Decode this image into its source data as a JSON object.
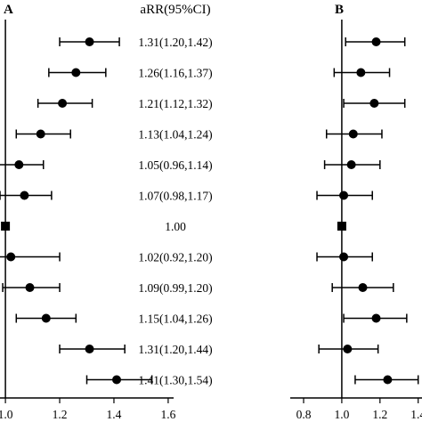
{
  "chart_data": [
    {
      "panel": "A",
      "type": "forest",
      "column_header": "aRR(95%CI)",
      "reference_line": 1.0,
      "xticks": [
        "1.0",
        "1.2",
        "1.4",
        "1.6"
      ],
      "xlim": [
        0.98,
        1.62
      ],
      "rows": [
        {
          "estimate": 1.31,
          "lower": 1.2,
          "upper": 1.42,
          "label": "1.31(1.20,1.42)",
          "marker": "circle"
        },
        {
          "estimate": 1.26,
          "lower": 1.16,
          "upper": 1.37,
          "label": "1.26(1.16,1.37)",
          "marker": "circle"
        },
        {
          "estimate": 1.21,
          "lower": 1.12,
          "upper": 1.32,
          "label": "1.21(1.12,1.32)",
          "marker": "circle"
        },
        {
          "estimate": 1.13,
          "lower": 1.04,
          "upper": 1.24,
          "label": "1.13(1.04,1.24)",
          "marker": "circle"
        },
        {
          "estimate": 1.05,
          "lower": 0.96,
          "upper": 1.14,
          "label": "1.05(0.96,1.14)",
          "marker": "circle"
        },
        {
          "estimate": 1.07,
          "lower": 0.98,
          "upper": 1.17,
          "label": "1.07(0.98,1.17)",
          "marker": "circle"
        },
        {
          "estimate": 1.0,
          "lower": 1.0,
          "upper": 1.0,
          "label": "1.00",
          "marker": "square"
        },
        {
          "estimate": 1.02,
          "lower": 0.92,
          "upper": 1.2,
          "label": "1.02(0.92,1.20)",
          "marker": "circle"
        },
        {
          "estimate": 1.09,
          "lower": 0.99,
          "upper": 1.2,
          "label": "1.09(0.99,1.20)",
          "marker": "circle"
        },
        {
          "estimate": 1.15,
          "lower": 1.04,
          "upper": 1.26,
          "label": "1.15(1.04,1.26)",
          "marker": "circle"
        },
        {
          "estimate": 1.31,
          "lower": 1.2,
          "upper": 1.44,
          "label": "1.31(1.20,1.44)",
          "marker": "circle"
        },
        {
          "estimate": 1.41,
          "lower": 1.3,
          "upper": 1.54,
          "label": "1.41(1.30,1.54)",
          "marker": "circle"
        }
      ]
    },
    {
      "panel": "B",
      "type": "forest",
      "reference_line": 1.0,
      "xticks": [
        "0.8",
        "1.0",
        "1.2",
        "1.4"
      ],
      "xlim": [
        0.73,
        1.42
      ],
      "rows": [
        {
          "estimate": 1.18,
          "lower": 1.02,
          "upper": 1.33,
          "marker": "circle"
        },
        {
          "estimate": 1.1,
          "lower": 0.96,
          "upper": 1.25,
          "marker": "circle"
        },
        {
          "estimate": 1.17,
          "lower": 1.01,
          "upper": 1.33,
          "marker": "circle"
        },
        {
          "estimate": 1.06,
          "lower": 0.92,
          "upper": 1.21,
          "marker": "circle"
        },
        {
          "estimate": 1.05,
          "lower": 0.91,
          "upper": 1.2,
          "marker": "circle"
        },
        {
          "estimate": 1.01,
          "lower": 0.87,
          "upper": 1.16,
          "marker": "circle"
        },
        {
          "estimate": 1.0,
          "lower": 1.0,
          "upper": 1.0,
          "marker": "square"
        },
        {
          "estimate": 1.01,
          "lower": 0.87,
          "upper": 1.16,
          "marker": "circle"
        },
        {
          "estimate": 1.11,
          "lower": 0.95,
          "upper": 1.27,
          "marker": "circle"
        },
        {
          "estimate": 1.18,
          "lower": 1.01,
          "upper": 1.34,
          "marker": "circle"
        },
        {
          "estimate": 1.03,
          "lower": 0.88,
          "upper": 1.19,
          "marker": "circle"
        },
        {
          "estimate": 1.24,
          "lower": 1.07,
          "upper": 1.4,
          "marker": "circle"
        }
      ]
    }
  ]
}
